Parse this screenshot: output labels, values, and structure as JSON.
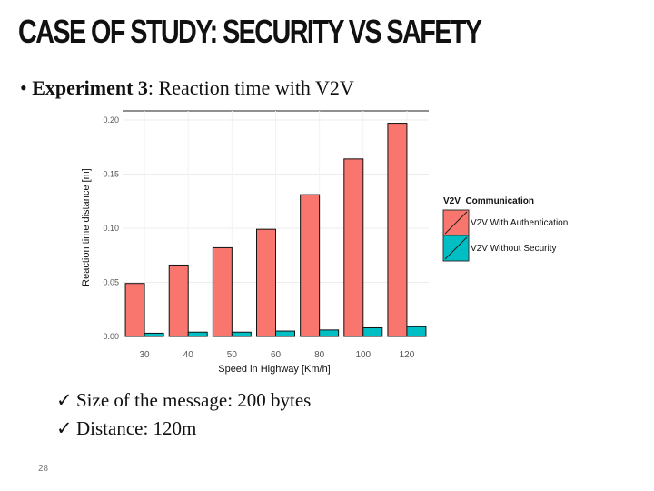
{
  "slide": {
    "title": "CASE OF STUDY: SECURITY VS SAFETY",
    "bullet_mark": "•",
    "bullet_bold": "Experiment 3",
    "bullet_rest": ": Reaction time with V2V",
    "checks": [
      {
        "mark": "✓",
        "text": "Size of the message: 200 bytes"
      },
      {
        "mark": "✓",
        "text": "Distance: 120m"
      }
    ],
    "page_number": "28"
  },
  "chart_data": {
    "type": "bar",
    "categories": [
      "30",
      "40",
      "50",
      "60",
      "80",
      "100",
      "120"
    ],
    "series": [
      {
        "name": "V2V With Authentication",
        "color": "#f8766d",
        "values": [
          0.049,
          0.066,
          0.082,
          0.099,
          0.131,
          0.164,
          0.197
        ]
      },
      {
        "name": "V2V Without Security",
        "color": "#00bfc4",
        "values": [
          0.003,
          0.004,
          0.004,
          0.005,
          0.006,
          0.008,
          0.009
        ]
      }
    ],
    "xlabel": "Speed in Highway [Km/h]",
    "ylabel": "Reaction time distance [m]",
    "ylim": [
      0,
      0.2
    ],
    "yticks": [
      "0.00",
      "0.05",
      "0.10",
      "0.15",
      "0.20"
    ],
    "legend_title": "V2V_Communication",
    "legend_position": "right",
    "grid": true
  }
}
